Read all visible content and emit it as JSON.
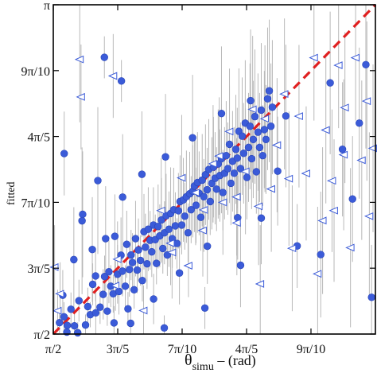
{
  "chart_data": {
    "type": "scatter",
    "title": "",
    "xlabel": "θ",
    "xlabel_sub": "simu",
    "xlabel_unit": " – (rad)",
    "ylabel": "",
    "ylabel_sub": "fitted",
    "xlim": [
      1.5708,
      3.1416
    ],
    "ylim": [
      1.5708,
      3.1416
    ],
    "x_ticks": [
      {
        "value": 1.5708,
        "label": "π/2"
      },
      {
        "value": 1.885,
        "label": "3π/5"
      },
      {
        "value": 2.1991,
        "label": "7π/10"
      },
      {
        "value": 2.5133,
        "label": "4π/5"
      },
      {
        "value": 2.8274,
        "label": "9π/10"
      }
    ],
    "y_ticks": [
      {
        "value": 1.5708,
        "label": "π/2"
      },
      {
        "value": 1.885,
        "label": "3π/5"
      },
      {
        "value": 2.1991,
        "label": "7π/10"
      },
      {
        "value": 2.5133,
        "label": "4π/5"
      },
      {
        "value": 2.8274,
        "label": "9π/10"
      },
      {
        "value": 3.1416,
        "label": "π"
      }
    ],
    "grid": false,
    "colors": {
      "dots": "#3b5bd8",
      "triangles": "#3b5bd8",
      "errorbars": "#b8b8b8",
      "reference": "#e02020"
    },
    "reference_line": {
      "style": "dashed",
      "x": [
        1.5708,
        3.1416
      ],
      "y": [
        1.5708,
        3.1416
      ]
    },
    "series": [
      {
        "marker": "filled-circle",
        "points": [
          [
            1.601,
            1.625,
            0.05
          ],
          [
            1.617,
            1.756,
            0.12
          ],
          [
            1.623,
            1.653,
            0.07
          ],
          [
            1.639,
            1.612,
            0.05
          ],
          [
            1.657,
            1.689,
            0.08
          ],
          [
            1.674,
            1.61,
            0.06
          ],
          [
            1.696,
            1.73,
            0.1
          ],
          [
            1.714,
            2.142,
            0.3
          ],
          [
            1.728,
            1.614,
            0.05
          ],
          [
            1.739,
            1.702,
            0.09
          ],
          [
            1.751,
            1.663,
            0.06
          ],
          [
            1.763,
            1.808,
            0.1
          ],
          [
            1.777,
            1.848,
            0.12
          ],
          [
            1.788,
            2.303,
            0.35
          ],
          [
            1.799,
            1.699,
            0.08
          ],
          [
            1.814,
            1.76,
            0.12
          ],
          [
            1.821,
            1.845,
            0.1
          ],
          [
            1.834,
            1.68,
            0.07
          ],
          [
            1.842,
            1.868,
            0.15
          ],
          [
            1.851,
            1.799,
            0.1
          ],
          [
            1.863,
            1.763,
            0.09
          ],
          [
            1.871,
            2.037,
            0.2
          ],
          [
            1.884,
            1.856,
            0.14
          ],
          [
            1.891,
            1.774,
            0.11
          ],
          [
            1.901,
            1.947,
            0.18
          ],
          [
            1.908,
            1.871,
            0.12
          ],
          [
            1.922,
            1.799,
            0.1
          ],
          [
            1.929,
            1.999,
            0.16
          ],
          [
            1.935,
            1.691,
            0.08
          ],
          [
            1.942,
            1.879,
            0.13
          ],
          [
            1.95,
            1.948,
            0.12
          ],
          [
            1.957,
            1.912,
            0.14
          ],
          [
            1.965,
            1.782,
            0.09
          ],
          [
            1.972,
            2.026,
            0.18
          ],
          [
            1.98,
            1.876,
            0.11
          ],
          [
            1.986,
            1.972,
            0.15
          ],
          [
            1.996,
            1.922,
            0.12
          ],
          [
            2.005,
            1.826,
            0.1
          ],
          [
            2.013,
            2.059,
            0.18
          ],
          [
            2.02,
            1.985,
            0.16
          ],
          [
            2.028,
            1.906,
            0.12
          ],
          [
            2.034,
            2.071,
            0.2
          ],
          [
            2.043,
            2.018,
            0.14
          ],
          [
            2.051,
            1.963,
            0.12
          ],
          [
            2.059,
            2.091,
            0.18
          ],
          [
            2.068,
            2.021,
            0.12
          ],
          [
            2.074,
            1.908,
            0.1
          ],
          [
            2.082,
            2.084,
            0.2
          ],
          [
            2.09,
            2.039,
            0.15
          ],
          [
            2.098,
            2.115,
            0.2
          ],
          [
            2.105,
            1.979,
            0.12
          ],
          [
            2.113,
            2.054,
            0.15
          ],
          [
            2.121,
            2.135,
            0.2
          ],
          [
            2.127,
            1.948,
            0.1
          ],
          [
            2.135,
            2.071,
            0.18
          ],
          [
            2.143,
            2.146,
            0.22
          ],
          [
            2.151,
            2.026,
            0.14
          ],
          [
            2.158,
            2.164,
            0.2
          ],
          [
            2.166,
            2.087,
            0.16
          ],
          [
            2.174,
            2.003,
            0.12
          ],
          [
            2.181,
            2.159,
            0.18
          ],
          [
            2.189,
            2.203,
            0.22
          ],
          [
            2.197,
            2.091,
            0.14
          ],
          [
            2.205,
            2.211,
            0.2
          ],
          [
            2.212,
            2.133,
            0.16
          ],
          [
            2.22,
            2.226,
            0.22
          ],
          [
            2.228,
            2.054,
            0.14
          ],
          [
            2.236,
            2.24,
            0.2
          ],
          [
            2.243,
            2.164,
            0.16
          ],
          [
            2.251,
            2.252,
            0.22
          ],
          [
            2.259,
            2.277,
            0.22
          ],
          [
            2.267,
            2.185,
            0.18
          ],
          [
            2.274,
            2.294,
            0.24
          ],
          [
            2.282,
            2.242,
            0.2
          ],
          [
            2.29,
            2.128,
            0.16
          ],
          [
            2.297,
            2.305,
            0.22
          ],
          [
            2.305,
            2.226,
            0.18
          ],
          [
            2.313,
            2.331,
            0.24
          ],
          [
            2.321,
            2.259,
            0.2
          ],
          [
            2.329,
            2.356,
            0.24
          ],
          [
            2.336,
            2.203,
            0.16
          ],
          [
            2.344,
            2.29,
            0.22
          ],
          [
            2.352,
            2.367,
            0.24
          ],
          [
            2.36,
            2.314,
            0.22
          ],
          [
            2.367,
            2.262,
            0.2
          ],
          [
            2.375,
            2.382,
            0.26
          ],
          [
            2.383,
            2.327,
            0.22
          ],
          [
            2.391,
            2.407,
            0.26
          ],
          [
            2.398,
            2.246,
            0.18
          ],
          [
            2.406,
            2.338,
            0.22
          ],
          [
            2.414,
            2.422,
            0.26
          ],
          [
            2.422,
            2.36,
            0.22
          ],
          [
            2.43,
            2.476,
            0.28
          ],
          [
            2.437,
            2.29,
            0.2
          ],
          [
            2.445,
            2.395,
            0.24
          ],
          [
            2.453,
            2.338,
            0.22
          ],
          [
            2.461,
            2.452,
            0.26
          ],
          [
            2.468,
            2.41,
            0.24
          ],
          [
            2.476,
            2.538,
            0.3
          ],
          [
            2.484,
            2.36,
            0.22
          ],
          [
            2.492,
            2.515,
            0.28
          ],
          [
            2.499,
            2.433,
            0.24
          ],
          [
            2.507,
            2.577,
            0.3
          ],
          [
            2.515,
            2.318,
            0.2
          ],
          [
            2.523,
            2.461,
            0.26
          ],
          [
            2.53,
            2.562,
            0.3
          ],
          [
            2.538,
            2.407,
            0.24
          ],
          [
            2.546,
            2.499,
            0.28
          ],
          [
            2.554,
            2.608,
            0.32
          ],
          [
            2.561,
            2.345,
            0.2
          ],
          [
            2.569,
            2.534,
            0.28
          ],
          [
            2.577,
            2.461,
            0.26
          ],
          [
            2.585,
            2.639,
            0.32
          ],
          [
            2.592,
            2.422,
            0.24
          ],
          [
            2.6,
            2.546,
            0.28
          ],
          [
            2.608,
            2.499,
            0.26
          ],
          [
            2.616,
            2.693,
            0.34
          ],
          [
            2.624,
            2.731,
            0.34
          ],
          [
            2.632,
            2.562,
            0.3
          ],
          [
            2.639,
            2.653,
            0.32
          ],
          [
            1.711,
            2.111,
            0.35
          ],
          [
            1.778,
            1.672,
            0.1
          ],
          [
            1.826,
            2.026,
            0.25
          ],
          [
            1.867,
            1.624,
            0.08
          ],
          [
            1.909,
            2.224,
            0.3
          ],
          [
            1.948,
            1.622,
            0.06
          ],
          [
            2.003,
            2.333,
            0.3
          ],
          [
            2.06,
            1.738,
            0.12
          ],
          [
            2.118,
            2.416,
            0.3
          ],
          [
            2.186,
            1.862,
            0.15
          ],
          [
            2.25,
            2.507,
            0.3
          ],
          [
            2.322,
            1.99,
            0.18
          ],
          [
            2.391,
            2.623,
            0.32
          ],
          [
            2.47,
            2.126,
            0.2
          ],
          [
            2.533,
            2.684,
            0.34
          ],
          [
            1.82,
            2.891,
            0.1
          ],
          [
            1.903,
            2.778,
            0.1
          ],
          [
            1.624,
            2.432,
            0.2
          ],
          [
            1.671,
            1.926,
            0.25
          ],
          [
            1.761,
            1.974,
            0.25
          ],
          [
            1.637,
            1.58,
            0.05
          ],
          [
            1.69,
            1.577,
            0.05
          ],
          [
            2.112,
            1.6,
            0.06
          ],
          [
            2.31,
            1.695,
            0.1
          ],
          [
            2.484,
            1.899,
            0.2
          ],
          [
            2.585,
            2.124,
            0.22
          ],
          [
            2.665,
            2.348,
            0.26
          ],
          [
            2.76,
            1.991,
            0.2
          ],
          [
            2.875,
            1.95,
            0.3
          ],
          [
            2.981,
            2.452,
            0.32
          ],
          [
            3.063,
            2.577,
            0.36
          ],
          [
            3.095,
            2.856,
            0.4
          ],
          [
            3.123,
            1.746,
            0.25
          ],
          [
            2.705,
            2.611,
            0.34
          ],
          [
            2.921,
            2.769,
            0.34
          ],
          [
            3.03,
            2.215,
            0.3
          ]
        ]
      },
      {
        "marker": "open-triangle-left",
        "points": [
          [
            1.577,
            1.89,
            0.2
          ],
          [
            1.592,
            1.682,
            0.1
          ],
          [
            1.604,
            1.763,
            0.15
          ],
          [
            1.7,
            2.881,
            0.3
          ],
          [
            1.706,
            2.702,
            0.25
          ],
          [
            1.863,
            2.802,
            0.2
          ],
          [
            1.874,
            1.802,
            0.12
          ],
          [
            1.884,
            1.928,
            0.18
          ],
          [
            2.011,
            1.683,
            0.12
          ],
          [
            2.097,
            2.16,
            0.25
          ],
          [
            2.143,
            2.004,
            0.2
          ],
          [
            2.197,
            2.316,
            0.3
          ],
          [
            2.23,
            1.897,
            0.15
          ],
          [
            2.265,
            2.245,
            0.25
          ],
          [
            2.305,
            2.163,
            0.2
          ],
          [
            2.35,
            2.383,
            0.28
          ],
          [
            2.398,
            2.199,
            0.25
          ],
          [
            2.43,
            2.537,
            0.3
          ],
          [
            2.466,
            2.101,
            0.25
          ],
          [
            2.508,
            2.347,
            0.3
          ],
          [
            2.543,
            2.643,
            0.35
          ],
          [
            2.572,
            2.18,
            0.28
          ],
          [
            2.603,
            2.598,
            0.35
          ],
          [
            2.634,
            2.263,
            0.3
          ],
          [
            2.662,
            2.472,
            0.32
          ],
          [
            2.698,
            2.716,
            0.36
          ],
          [
            2.736,
            1.98,
            0.3
          ],
          [
            2.769,
            2.61,
            0.34
          ],
          [
            2.804,
            2.337,
            0.32
          ],
          [
            2.842,
            2.889,
            0.3
          ],
          [
            2.884,
            2.112,
            0.35
          ],
          [
            2.9,
            2.544,
            0.35
          ],
          [
            2.93,
            2.302,
            0.34
          ],
          [
            2.962,
            2.853,
            0.3
          ],
          [
            2.993,
            2.651,
            0.36
          ],
          [
            3.02,
            1.983,
            0.38
          ],
          [
            3.045,
            2.889,
            0.3
          ],
          [
            3.075,
            2.4,
            0.38
          ],
          [
            3.1,
            2.682,
            0.38
          ],
          [
            3.13,
            2.457,
            0.4
          ],
          [
            2.987,
            2.426,
            0.36
          ],
          [
            2.86,
            1.858,
            0.32
          ],
          [
            2.58,
            1.81,
            0.28
          ],
          [
            2.465,
            2.225,
            0.28
          ],
          [
            2.3,
            2.065,
            0.22
          ],
          [
            2.94,
            2.16,
            0.34
          ],
          [
            3.112,
            2.133,
            0.4
          ],
          [
            2.72,
            2.312,
            0.32
          ],
          [
            2.15,
            1.96,
            0.22
          ],
          [
            2.38,
            2.42,
            0.28
          ]
        ]
      }
    ]
  }
}
